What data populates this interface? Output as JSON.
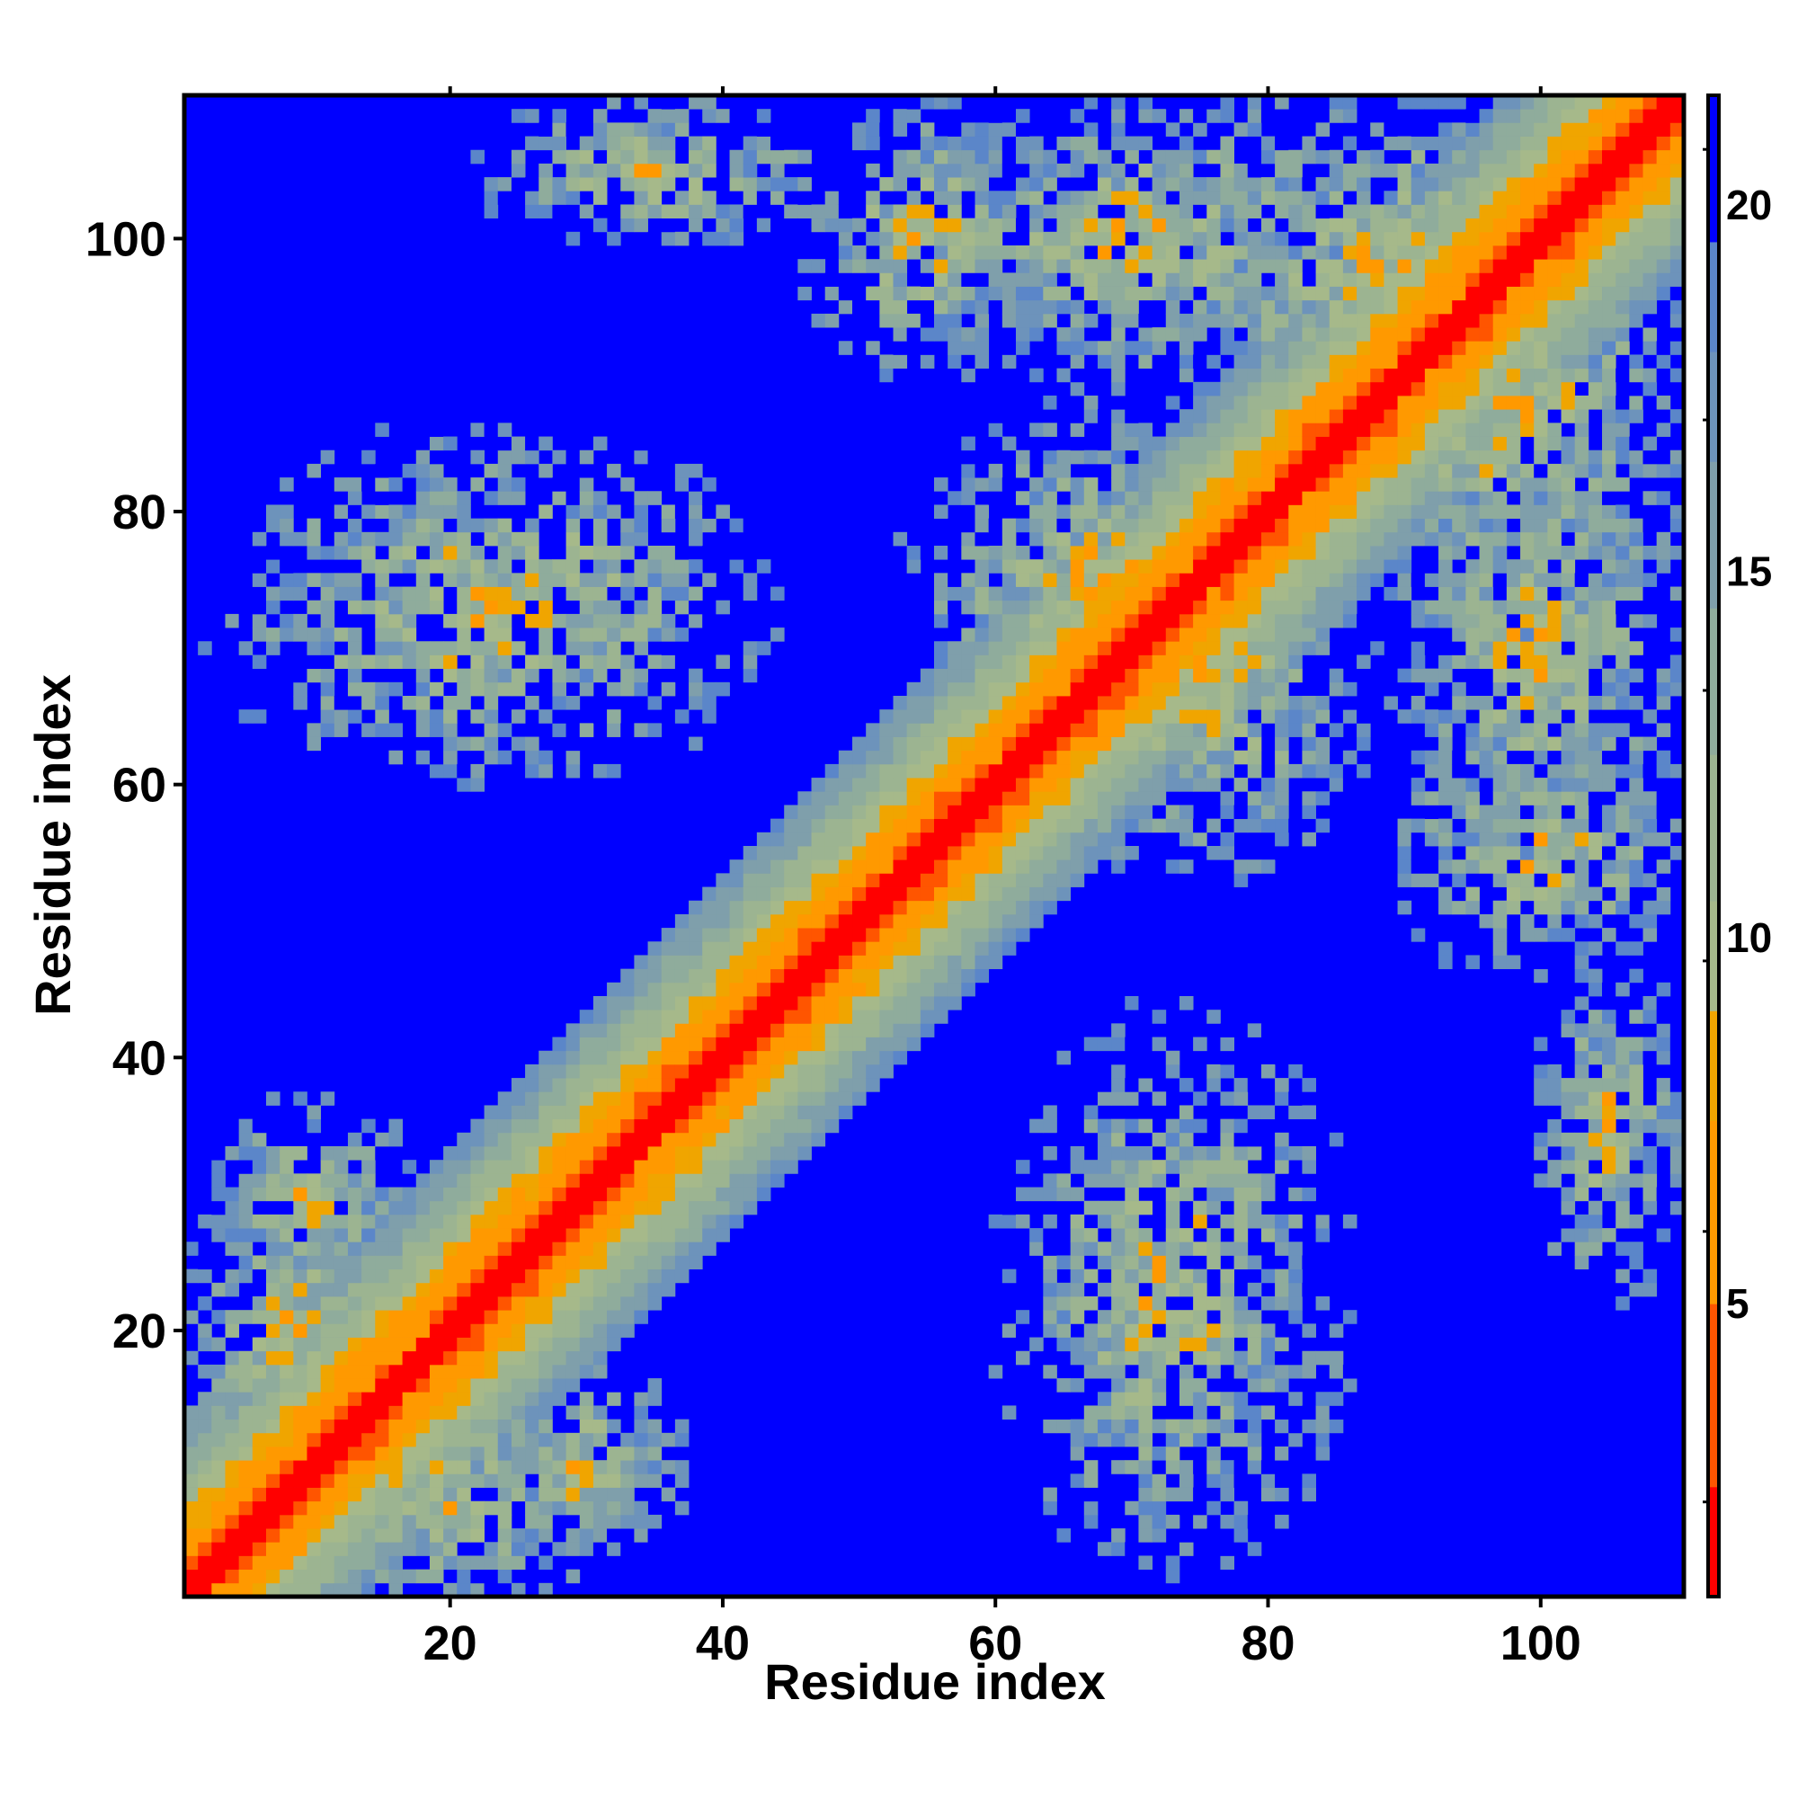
{
  "chart_data": {
    "type": "heatmap",
    "title": "",
    "xlabel": "Residue index",
    "ylabel": "Residue index",
    "n_residues": 110,
    "xlim": [
      1,
      110
    ],
    "ylim": [
      1,
      110
    ],
    "x_ticks": [
      20,
      40,
      60,
      80,
      100
    ],
    "y_ticks": [
      20,
      40,
      60,
      80,
      100
    ],
    "colorbar": {
      "range": [
        1,
        21.5
      ],
      "ticks": [
        5,
        10,
        15,
        20
      ],
      "colors": [
        {
          "max": 2.5,
          "color": "#ff0000"
        },
        {
          "max": 5.0,
          "color": "#ff5500"
        },
        {
          "max": 7.5,
          "color": "#ff9900"
        },
        {
          "max": 9.0,
          "color": "#f0a500"
        },
        {
          "max": 10.5,
          "color": "#a6b98a"
        },
        {
          "max": 12.5,
          "color": "#9cb491"
        },
        {
          "max": 14.5,
          "color": "#8fac9c"
        },
        {
          "max": 16.5,
          "color": "#7f9fab"
        },
        {
          "max": 18.0,
          "color": "#6d93bb"
        },
        {
          "max": 19.5,
          "color": "#5b86c9"
        },
        {
          "max": 21.5,
          "color": "#0000ff"
        }
      ]
    },
    "diagonal_band": {
      "description": "distance ~ 2 + 1.15*|i-j| near diagonal"
    },
    "contact_regions": [
      {
        "x_center": 23,
        "y_center": 73,
        "x_span": 22,
        "y_span": 14
      },
      {
        "x_center": 73,
        "y_center": 23,
        "x_span": 14,
        "y_span": 22
      },
      {
        "x_center": 70,
        "y_center": 100,
        "x_span": 18,
        "y_span": 12
      },
      {
        "x_center": 100,
        "y_center": 70,
        "x_span": 12,
        "y_span": 18
      },
      {
        "x_center": 68,
        "y_center": 75,
        "x_span": 16,
        "y_span": 14
      },
      {
        "x_center": 75,
        "y_center": 68,
        "x_span": 14,
        "y_span": 16
      },
      {
        "x_center": 100,
        "y_center": 55,
        "x_span": 12,
        "y_span": 10
      },
      {
        "x_center": 55,
        "y_center": 100,
        "x_span": 10,
        "y_span": 12
      },
      {
        "x_center": 20,
        "y_center": 8,
        "x_span": 14,
        "y_span": 10
      },
      {
        "x_center": 8,
        "y_center": 20,
        "x_span": 10,
        "y_span": 14
      },
      {
        "x_center": 10,
        "y_center": 30,
        "x_span": 8,
        "y_span": 8
      },
      {
        "x_center": 30,
        "y_center": 10,
        "x_span": 8,
        "y_span": 8
      },
      {
        "x_center": 88,
        "y_center": 98,
        "x_span": 20,
        "y_span": 14
      },
      {
        "x_center": 98,
        "y_center": 88,
        "x_span": 14,
        "y_span": 20
      },
      {
        "x_center": 35,
        "y_center": 105,
        "x_span": 14,
        "y_span": 6
      },
      {
        "x_center": 105,
        "y_center": 35,
        "x_span": 6,
        "y_span": 14
      }
    ]
  }
}
